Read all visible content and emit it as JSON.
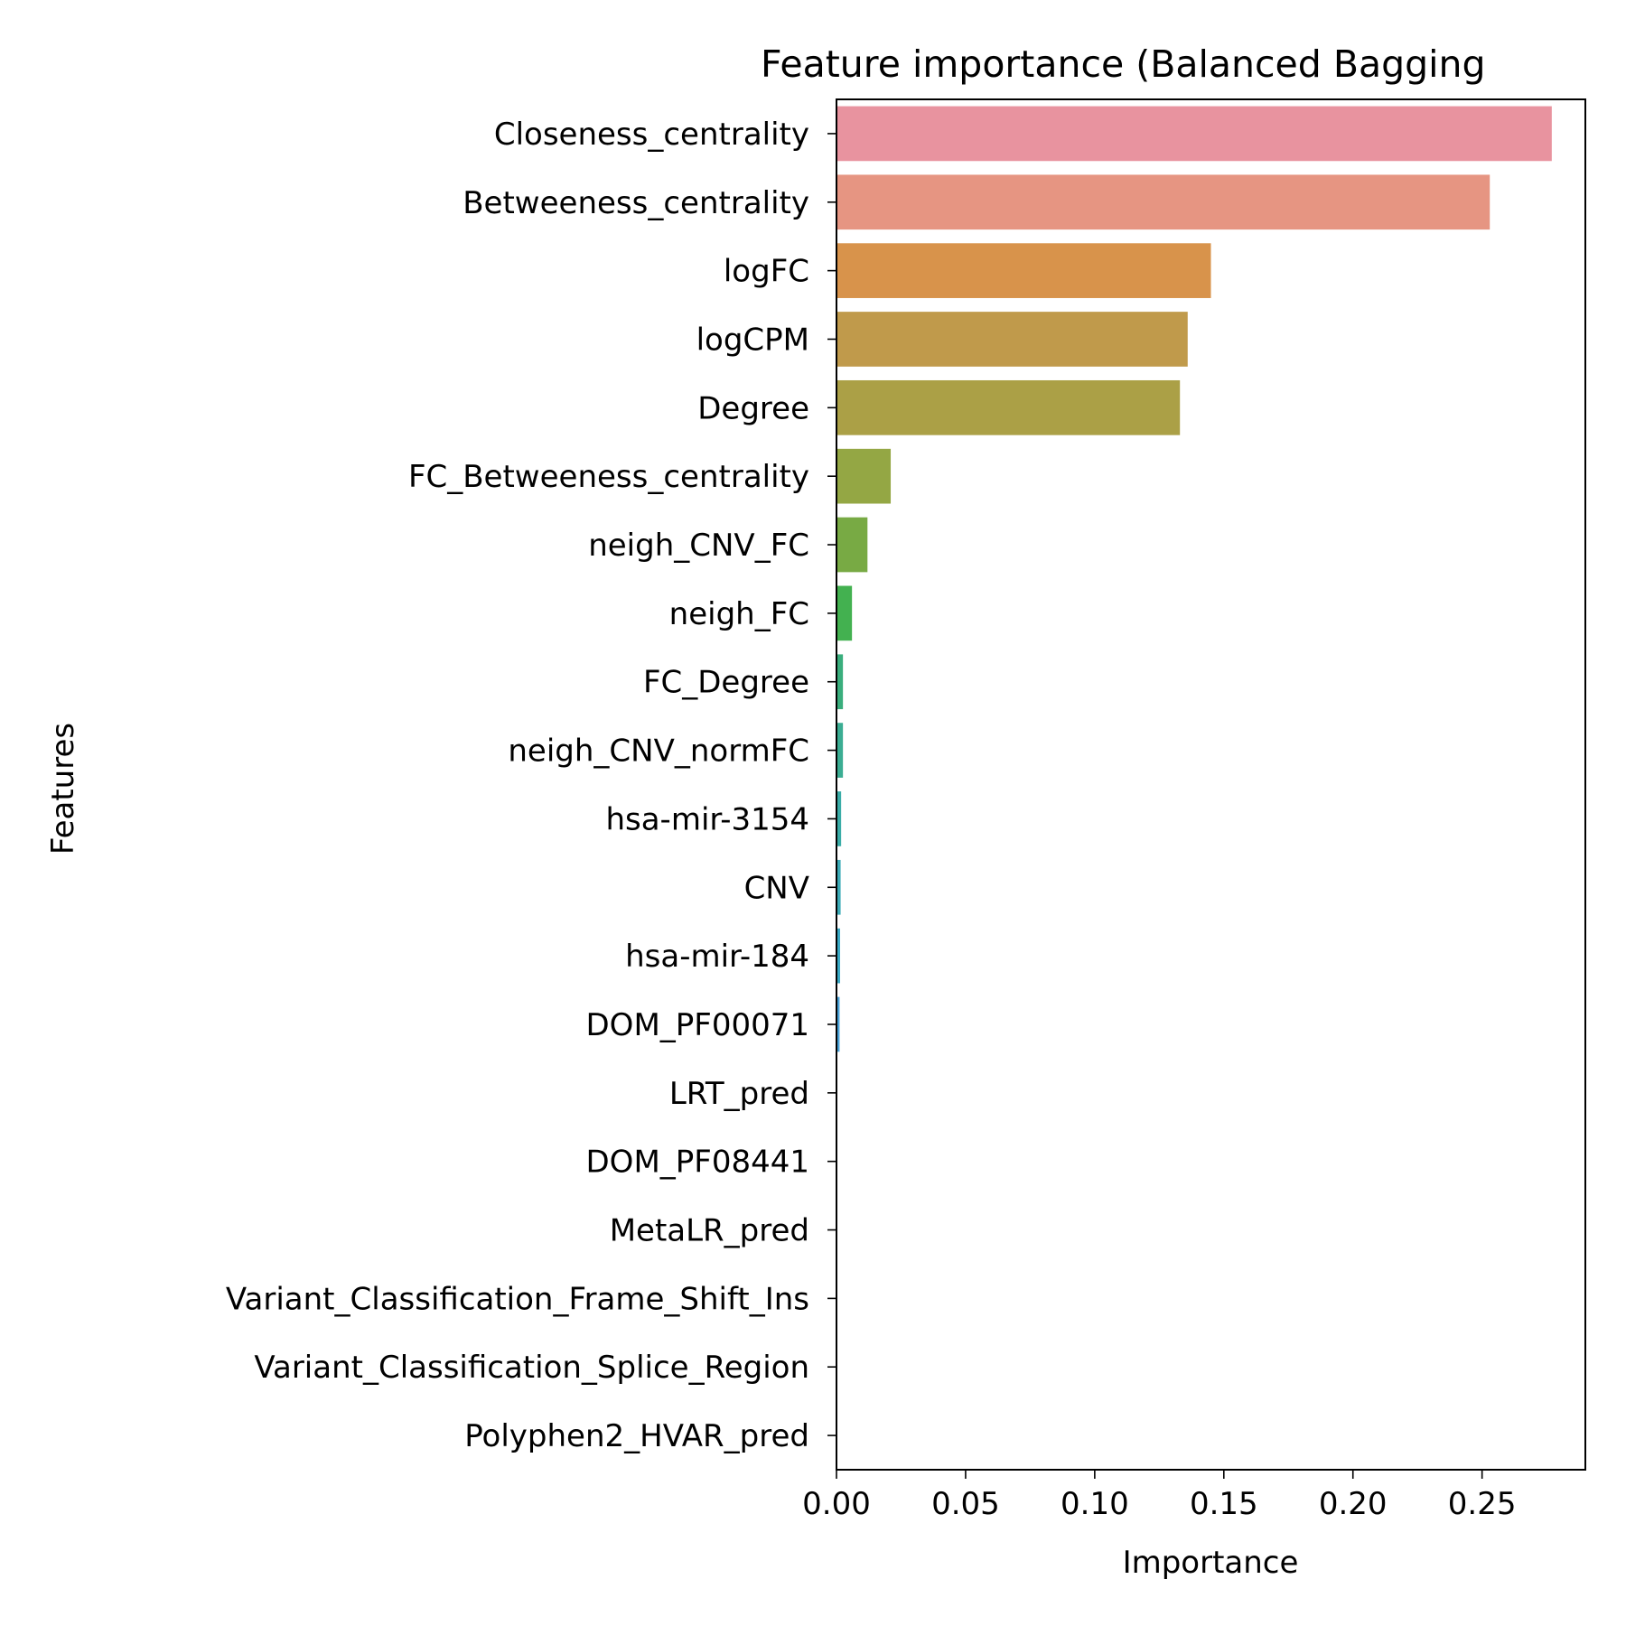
{
  "chart_data": {
    "type": "bar",
    "orientation": "horizontal",
    "title": "Feature importance (Balanced Bagging",
    "xlabel": "Importance",
    "ylabel": "Features",
    "xlim": [
      0,
      0.29
    ],
    "xticks": [
      0.0,
      0.05,
      0.1,
      0.15,
      0.2,
      0.25
    ],
    "xtick_labels": [
      "0.00",
      "0.05",
      "0.10",
      "0.15",
      "0.20",
      "0.25"
    ],
    "grid": false,
    "categories": [
      "Closeness_centrality",
      "Betweeness_centrality",
      "logFC",
      "logCPM",
      "Degree",
      "FC_Betweeness_centrality",
      "neigh_CNV_FC",
      "neigh_FC",
      "FC_Degree",
      "neigh_CNV_normFC",
      "hsa-mir-3154",
      "CNV",
      "hsa-mir-184",
      "DOM_PF00071",
      "LRT_pred",
      "DOM_PF08441",
      "MetaLR_pred",
      "Variant_Classification_Frame_Shift_Ins",
      "Variant_Classification_Splice_Region",
      "Polyphen2_HVAR_pred"
    ],
    "values": [
      0.277,
      0.253,
      0.145,
      0.136,
      0.133,
      0.021,
      0.012,
      0.006,
      0.0025,
      0.0025,
      0.0018,
      0.0016,
      0.0014,
      0.0012,
      0.0,
      0.0,
      0.0,
      0.0,
      0.0,
      0.0
    ],
    "colors": [
      "#e8939f",
      "#e69582",
      "#d8934b",
      "#c09a4b",
      "#aba046",
      "#94a744",
      "#78aa44",
      "#43b150",
      "#3aae7d",
      "#3bad93",
      "#3aaca7",
      "#3cabb7",
      "#3aa9c5",
      "#4aa3d9",
      "#7c95e8",
      "#a88ae9",
      "#c57ee8",
      "#dd79d2",
      "#e97ab9",
      "#ea80a4"
    ]
  }
}
